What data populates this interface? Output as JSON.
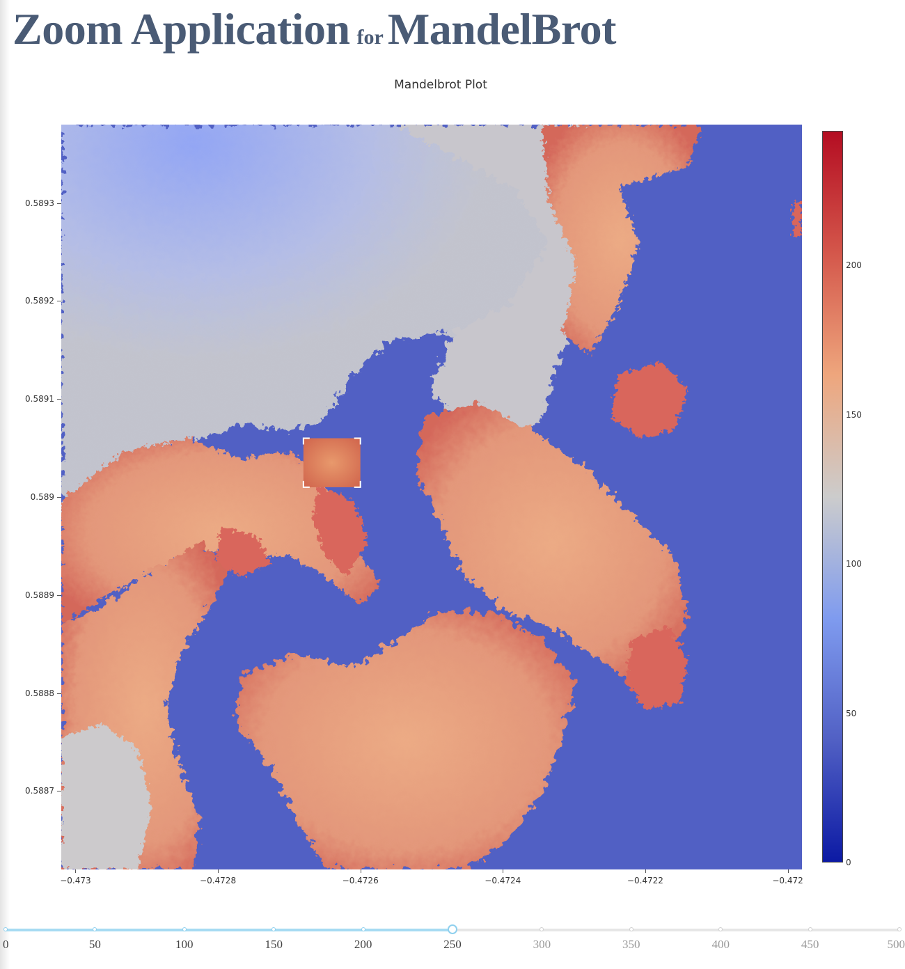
{
  "app": {
    "title_part1": "Zoom Application",
    "title_part2": "for",
    "title_part3": "MandelBrot"
  },
  "chart_data": {
    "type": "heatmap",
    "title": "Mandelbrot Plot",
    "xlabel": "",
    "ylabel": "",
    "xlim": [
      -0.47302,
      -0.47198
    ],
    "ylim": [
      0.58862,
      0.58938
    ],
    "x_ticks": [
      "−0.473",
      "−0.4728",
      "−0.4726",
      "−0.4724",
      "−0.4722",
      "−0.472"
    ],
    "x_tick_values": [
      -0.473,
      -0.4728,
      -0.4726,
      -0.4724,
      -0.4722,
      -0.472
    ],
    "y_ticks": [
      "0.5893",
      "0.5892",
      "0.5891",
      "0.589",
      "0.5889",
      "0.5888",
      "0.5887"
    ],
    "y_tick_values": [
      0.5893,
      0.5892,
      0.5891,
      0.589,
      0.5889,
      0.5888,
      0.5887
    ],
    "colorscale": [
      "#0c1aa4",
      "#5160c4",
      "#7f9bef",
      "#cccccc",
      "#eea67d",
      "#d4574b",
      "#b40d22"
    ],
    "colorbar": {
      "min": 0,
      "max": 245,
      "ticks": [
        "0",
        "50",
        "100",
        "150",
        "200"
      ],
      "tick_values": [
        0,
        50,
        100,
        150,
        200
      ]
    },
    "selection_box": {
      "x": [
        -0.47268,
        -0.4726
      ],
      "y": [
        0.58901,
        0.58906
      ]
    }
  },
  "slider": {
    "min": 0,
    "max": 500,
    "value": 250,
    "marks": [
      "0",
      "50",
      "100",
      "150",
      "200",
      "250",
      "300",
      "350",
      "400",
      "450",
      "500"
    ],
    "mark_values": [
      0,
      50,
      100,
      150,
      200,
      250,
      300,
      350,
      400,
      450,
      500
    ]
  }
}
